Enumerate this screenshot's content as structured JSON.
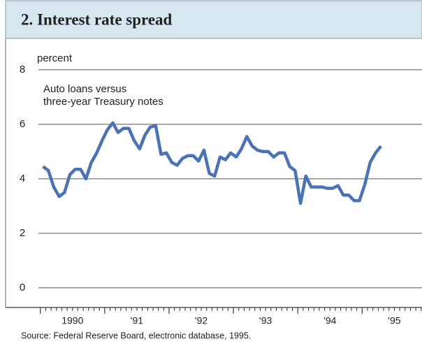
{
  "chart_data": {
    "type": "line",
    "title": "2. Interest rate spread",
    "y_label": "percent",
    "annotation": [
      "Auto loans versus",
      "three-year Treasury notes"
    ],
    "source": "Source: Federal Reserve Board, electronic database, 1995.",
    "x": [
      1990.042,
      1990.125,
      1990.208,
      1990.292,
      1990.375,
      1990.458,
      1990.542,
      1990.625,
      1990.708,
      1990.792,
      1990.875,
      1990.958,
      1991.042,
      1991.125,
      1991.208,
      1991.292,
      1991.375,
      1991.458,
      1991.542,
      1991.625,
      1991.708,
      1991.792,
      1991.875,
      1991.958,
      1992.042,
      1992.125,
      1992.208,
      1992.292,
      1992.375,
      1992.458,
      1992.542,
      1992.625,
      1992.708,
      1992.792,
      1992.875,
      1992.958,
      1993.042,
      1993.125,
      1993.208,
      1993.292,
      1993.375,
      1993.458,
      1993.542,
      1993.625,
      1993.708,
      1993.792,
      1993.875,
      1993.958,
      1994.042,
      1994.125,
      1994.208,
      1994.292,
      1994.375,
      1994.458,
      1994.542,
      1994.625,
      1994.708,
      1994.792,
      1994.875,
      1994.958,
      1995.042,
      1995.125,
      1995.208,
      1995.292
    ],
    "series": [
      {
        "name": "Auto loans versus three-year Treasury notes",
        "color": "#4a72b8",
        "values": [
          4.45,
          4.3,
          3.7,
          3.35,
          3.5,
          4.15,
          4.35,
          4.35,
          4.0,
          4.6,
          4.95,
          5.4,
          5.8,
          6.05,
          5.7,
          5.85,
          5.85,
          5.4,
          5.1,
          5.6,
          5.9,
          5.95,
          4.9,
          4.95,
          4.6,
          4.5,
          4.75,
          4.85,
          4.85,
          4.65,
          5.05,
          4.2,
          4.1,
          4.8,
          4.7,
          4.95,
          4.8,
          5.1,
          5.55,
          5.2,
          5.05,
          5.0,
          5.0,
          4.8,
          4.95,
          4.95,
          4.45,
          4.3,
          3.1,
          4.1,
          3.7,
          3.7,
          3.7,
          3.65,
          3.65,
          3.75,
          3.4,
          3.4,
          3.2,
          3.2,
          3.8,
          4.6,
          4.95,
          5.2
        ]
      }
    ],
    "xlim": [
      1989.97,
      1995.93
    ],
    "xticks": [
      {
        "value": 1990,
        "label": "1990"
      },
      {
        "value": 1991,
        "label": "'91"
      },
      {
        "value": 1992,
        "label": "'92"
      },
      {
        "value": 1993,
        "label": "'93"
      },
      {
        "value": 1994,
        "label": "'94"
      },
      {
        "value": 1995,
        "label": "'95"
      }
    ],
    "ylim": [
      -0.72,
      9.15
    ],
    "yticks": [
      0,
      2,
      4,
      6,
      8
    ],
    "grid": true
  }
}
